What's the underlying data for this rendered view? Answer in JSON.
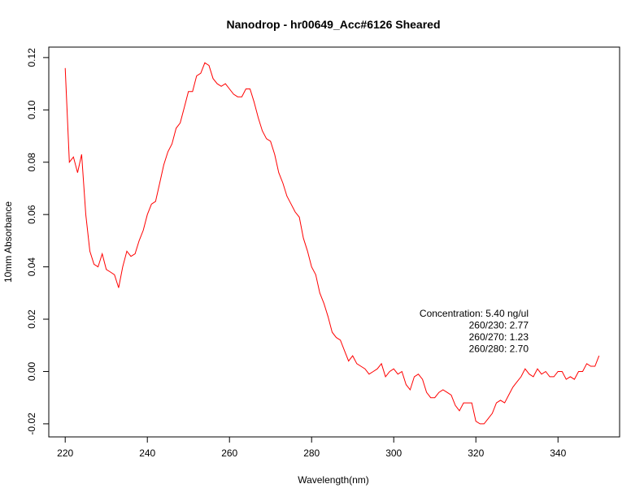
{
  "chart_data": {
    "type": "line",
    "title": "Nanodrop - hr00649_Acc#6126 Sheared",
    "xlabel": "Wavelength(nm)",
    "ylabel": "10mm Absorbance",
    "xlim": [
      216,
      355
    ],
    "ylim": [
      -0.025,
      0.124
    ],
    "x_ticks": [
      220,
      240,
      260,
      280,
      300,
      320,
      340
    ],
    "y_ticks": [
      -0.02,
      0.0,
      0.02,
      0.04,
      0.06,
      0.08,
      0.1,
      0.12
    ],
    "x_tick_labels": [
      "220",
      "240",
      "260",
      "280",
      "300",
      "320",
      "340"
    ],
    "y_tick_labels": [
      "-0.02",
      "0.00",
      "0.02",
      "0.04",
      "0.06",
      "0.08",
      "0.10",
      "0.12"
    ],
    "grid": false,
    "line_color": "#ff0000",
    "annotations": [
      "Concentration: 5.40 ng/ul",
      "260/230: 2.77",
      "260/270: 1.23",
      "260/280: 2.70"
    ],
    "series": [
      {
        "x_start": 220,
        "x_step": 1,
        "values": [
          0.116,
          0.08,
          0.082,
          0.076,
          0.083,
          0.06,
          0.046,
          0.041,
          0.04,
          0.045,
          0.039,
          0.038,
          0.037,
          0.032,
          0.04,
          0.046,
          0.044,
          0.045,
          0.05,
          0.054,
          0.06,
          0.064,
          0.065,
          0.072,
          0.079,
          0.084,
          0.087,
          0.093,
          0.095,
          0.101,
          0.107,
          0.107,
          0.113,
          0.114,
          0.118,
          0.117,
          0.112,
          0.11,
          0.109,
          0.11,
          0.108,
          0.106,
          0.105,
          0.105,
          0.108,
          0.108,
          0.103,
          0.097,
          0.092,
          0.089,
          0.088,
          0.083,
          0.076,
          0.072,
          0.067,
          0.064,
          0.061,
          0.059,
          0.051,
          0.046,
          0.04,
          0.037,
          0.03,
          0.026,
          0.021,
          0.015,
          0.013,
          0.012,
          0.008,
          0.004,
          0.006,
          0.003,
          0.002,
          0.001,
          -0.001,
          0.0,
          0.001,
          0.003,
          -0.002,
          0.0,
          0.001,
          -0.001,
          0.0,
          -0.005,
          -0.007,
          -0.002,
          -0.001,
          -0.003,
          -0.008,
          -0.01,
          -0.01,
          -0.008,
          -0.007,
          -0.008,
          -0.009,
          -0.013,
          -0.015,
          -0.012,
          -0.012,
          -0.012,
          -0.019,
          -0.02,
          -0.02,
          -0.018,
          -0.016,
          -0.012,
          -0.011,
          -0.012,
          -0.009,
          -0.006,
          -0.004,
          -0.002,
          0.001,
          -0.001,
          -0.002,
          0.001,
          -0.001,
          0.0,
          -0.002,
          -0.002,
          0.0,
          0.0,
          -0.003,
          -0.002,
          -0.003,
          0.0,
          0.0,
          0.003,
          0.002,
          0.002,
          0.006
        ]
      }
    ]
  }
}
